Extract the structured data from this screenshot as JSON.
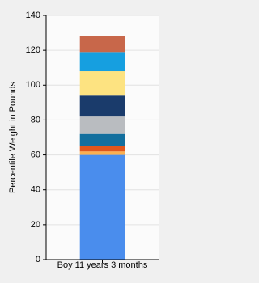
{
  "chart_data": {
    "type": "stacked_bar",
    "y_label": "Percentile Weight in Pounds",
    "categories": [
      "Boy 11 years 3 months"
    ],
    "series": [
      {
        "color": "#4a8ded",
        "values": [
          60
        ]
      },
      {
        "color": "#fbb050",
        "values": [
          2
        ]
      },
      {
        "color": "#e0561c",
        "values": [
          3
        ]
      },
      {
        "color": "#136f9e",
        "values": [
          7
        ]
      },
      {
        "color": "#b9bcc0",
        "values": [
          10
        ]
      },
      {
        "color": "#1a3b6b",
        "values": [
          12
        ]
      },
      {
        "color": "#fde381",
        "values": [
          14
        ]
      },
      {
        "color": "#169fe0",
        "values": [
          11
        ]
      },
      {
        "color": "#c8674a",
        "values": [
          9
        ]
      }
    ],
    "ylim": [
      0,
      140
    ],
    "yticks": [
      0,
      20,
      40,
      60,
      80,
      100,
      120,
      140
    ],
    "grid": true
  }
}
